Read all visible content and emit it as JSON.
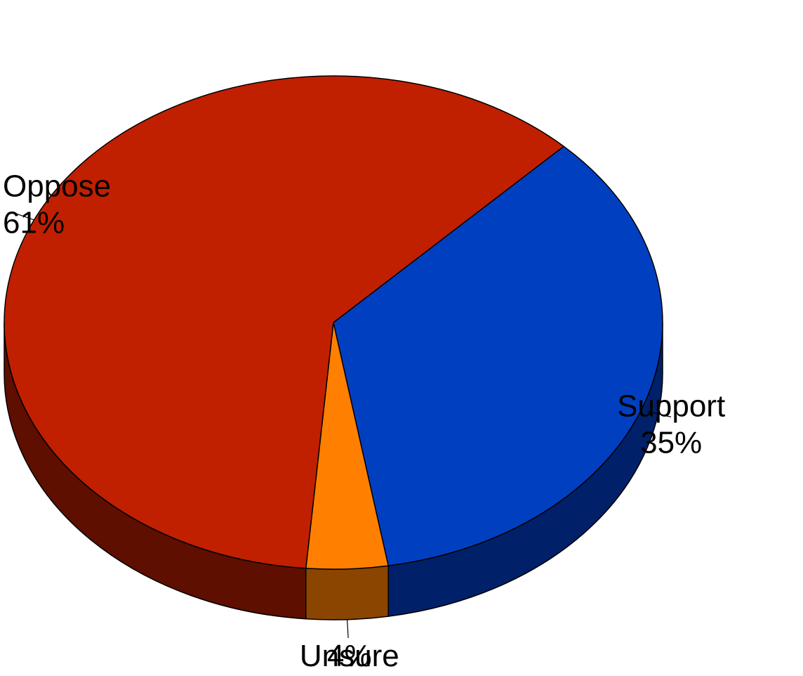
{
  "chart_data": {
    "type": "pie",
    "style": "3d-tilted",
    "slices": [
      {
        "label": "Support",
        "value": 35,
        "value_label": "35%",
        "color": "#0040C0",
        "side_color": "#00206A"
      },
      {
        "label": "Unsure",
        "value": 4,
        "value_label": "4%",
        "color": "#FF8000",
        "side_color": "#8A4500"
      },
      {
        "label": "Oppose",
        "value": 61,
        "value_label": "61%",
        "color": "#C02000",
        "side_color": "#5E0F00"
      }
    ],
    "title": "",
    "legend": "none",
    "outline_color": "#000000"
  }
}
